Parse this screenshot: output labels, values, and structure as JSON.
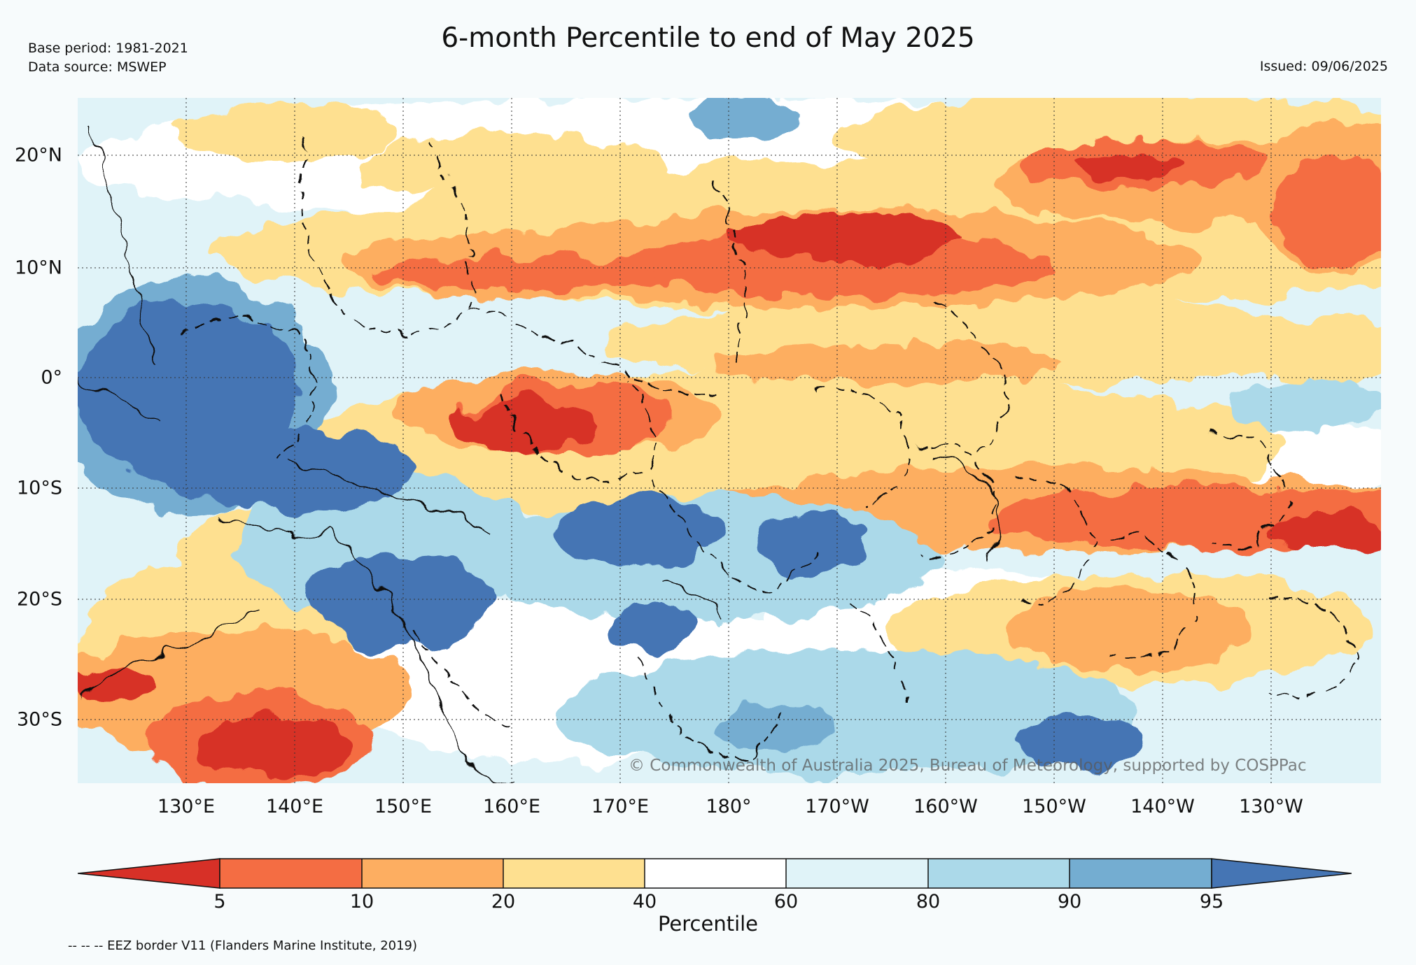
{
  "header": {
    "base_period": "Base period: 1981-2021",
    "data_source": "Data source: MSWEP",
    "title": "6-month Percentile to end of May 2025",
    "issued": "Issued: 09/06/2025"
  },
  "map": {
    "lat_labels": [
      "20°N",
      "10°N",
      "0°",
      "10°S",
      "20°S",
      "30°S"
    ],
    "lon_labels": [
      "130°E",
      "140°E",
      "150°E",
      "160°E",
      "170°E",
      "180°",
      "170°W",
      "160°W",
      "150°W",
      "140°W",
      "130°W"
    ],
    "copyright": "© Commonwealth of Australia 2025, Bureau of Meteorology, supported by COSPPac",
    "colors": {
      "p0_5": "#d73027",
      "p5_10": "#f46d43",
      "p10_20": "#fdae61",
      "p20_40": "#fee090",
      "p40_60": "#ffffff",
      "p60_80": "#e0f3f8",
      "p80_90": "#abd9e9",
      "p90_95": "#74add1",
      "p95_100": "#4575b4"
    }
  },
  "colorbar": {
    "label": "Percentile",
    "ticks": [
      "5",
      "10",
      "20",
      "40",
      "60",
      "80",
      "90",
      "95"
    ],
    "colors": [
      "#d73027",
      "#f46d43",
      "#fdae61",
      "#fee090",
      "#ffffff",
      "#e0f3f8",
      "#abd9e9",
      "#74add1",
      "#4575b4"
    ]
  },
  "footnote": "-- -- -- EEZ border V11 (Flanders Marine Institute, 2019)"
}
